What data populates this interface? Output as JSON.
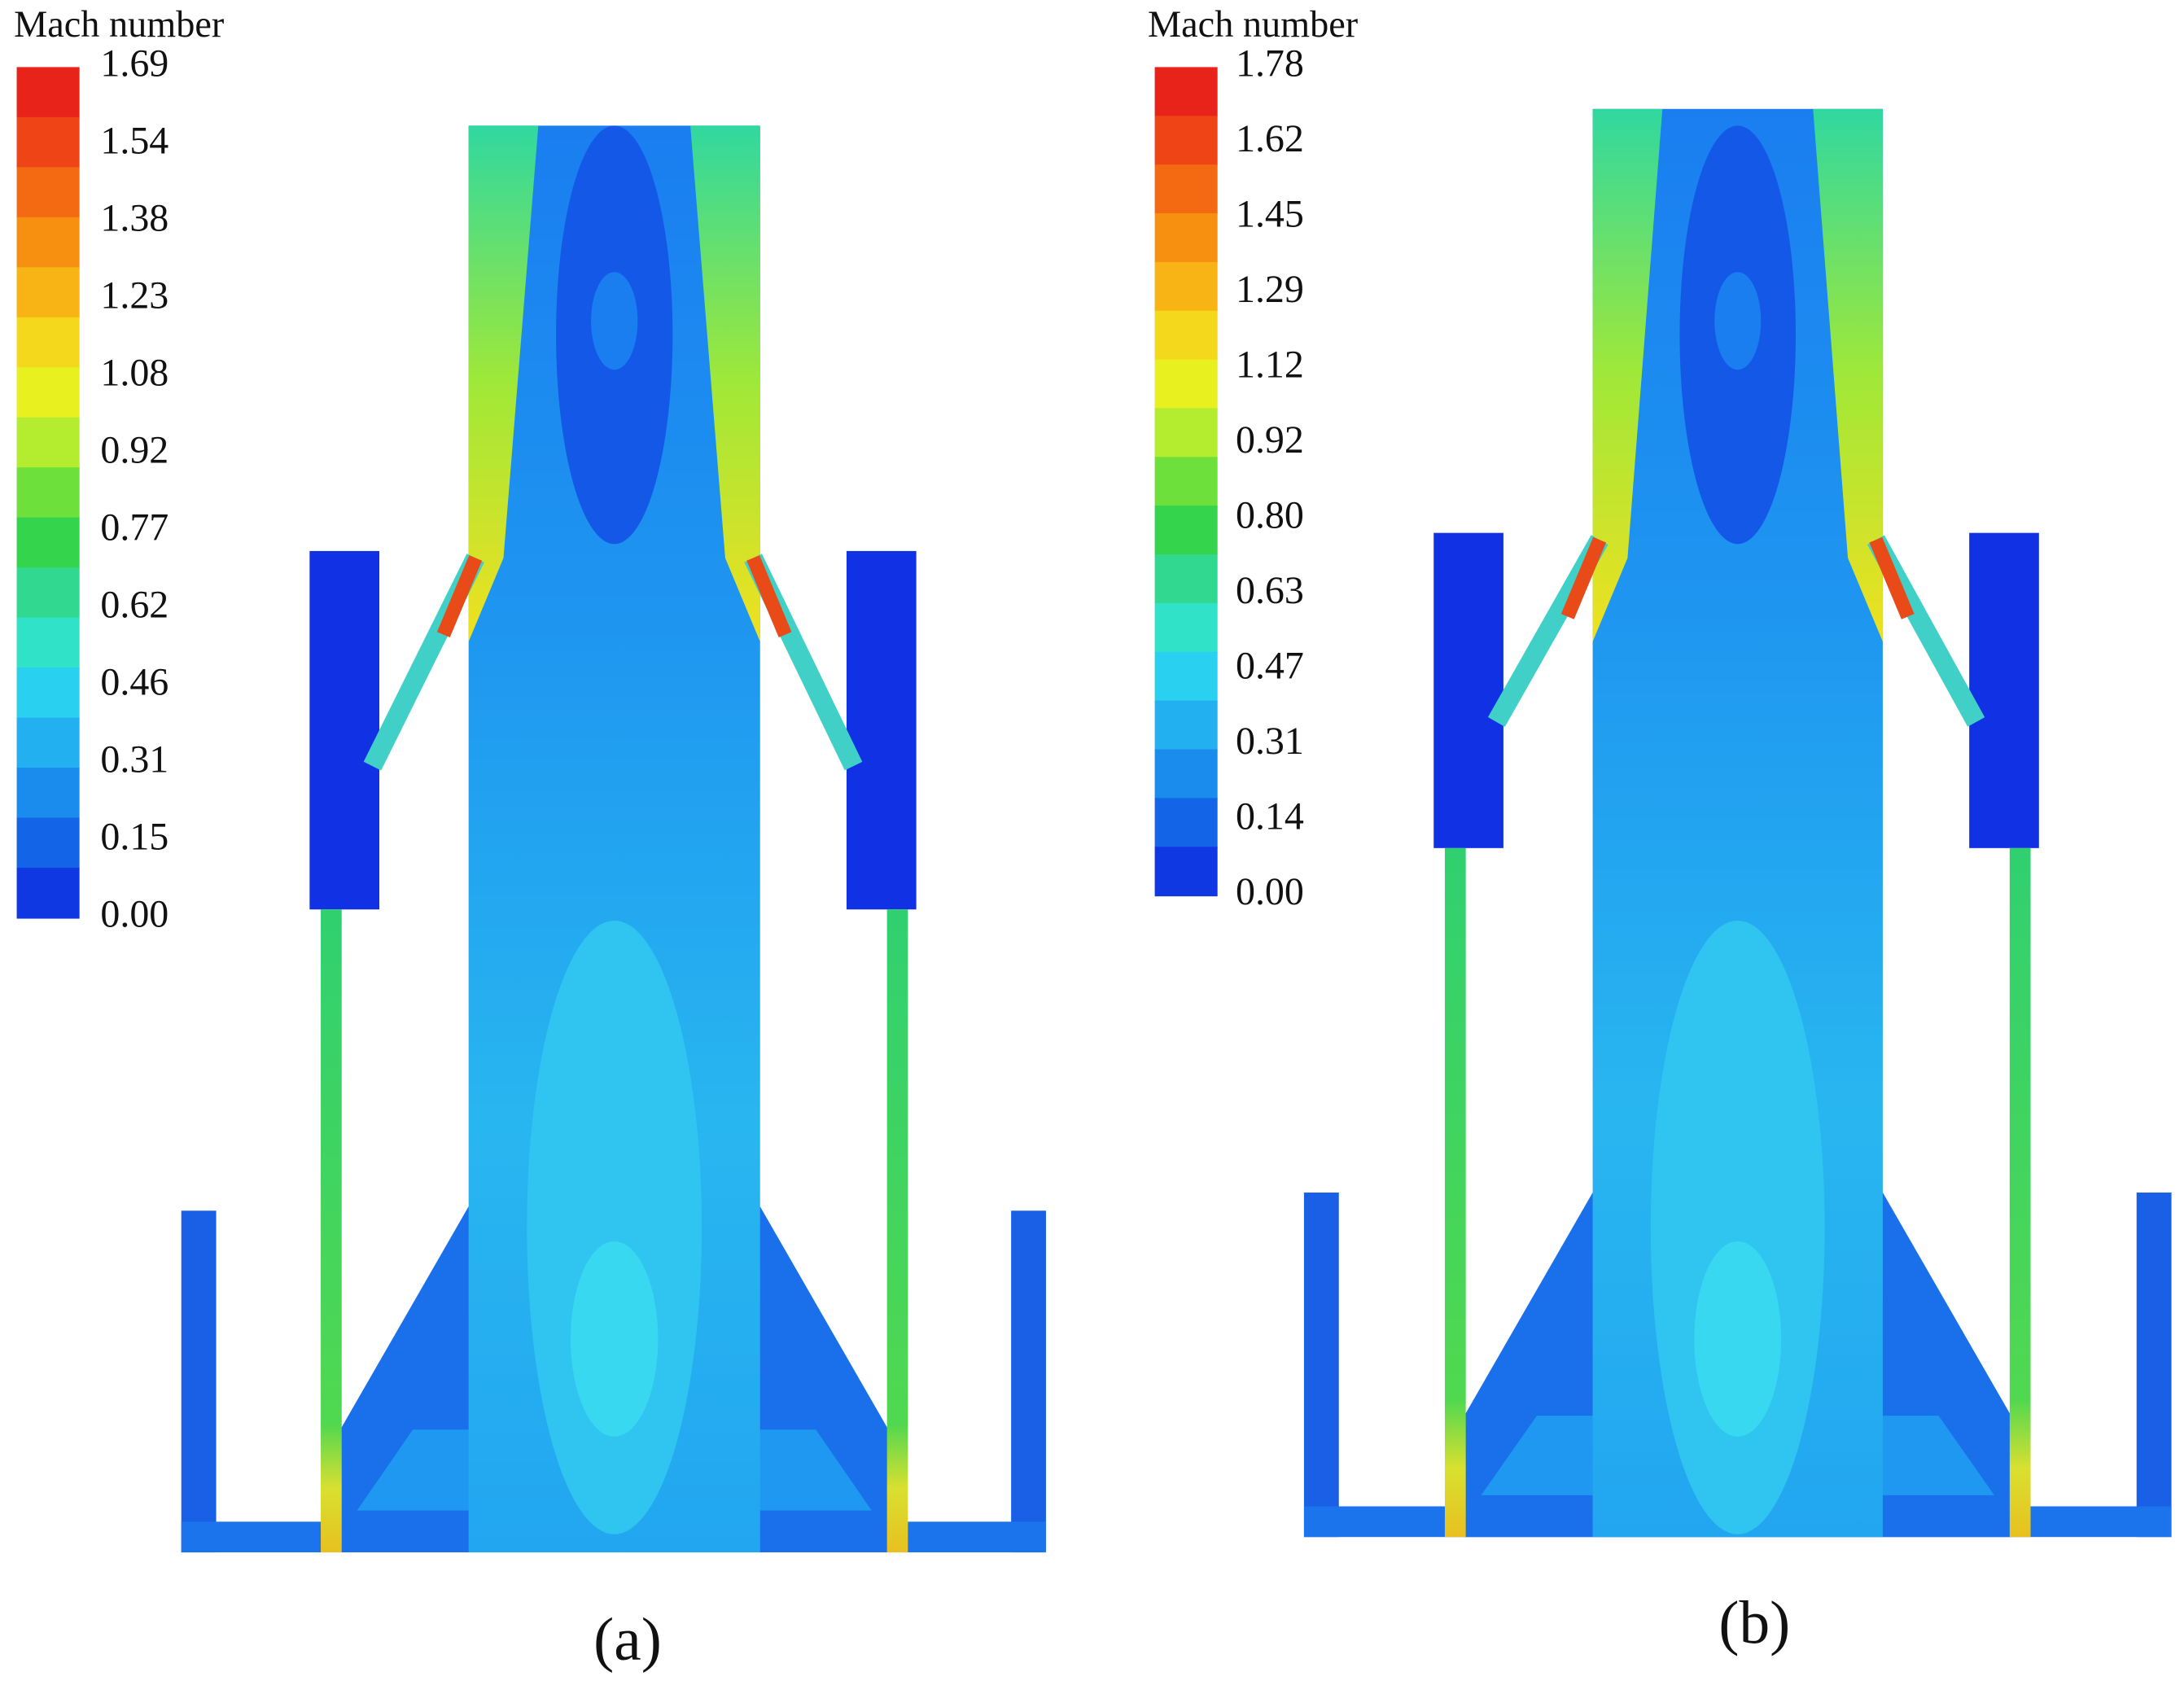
{
  "panels": [
    {
      "colorbar_title": "Mach number",
      "colorbar_ticks": [
        "1.69",
        "1.54",
        "1.38",
        "1.23",
        "1.08",
        "0.92",
        "0.77",
        "0.62",
        "0.46",
        "0.31",
        "0.15",
        "0.00"
      ],
      "label": "(a)"
    },
    {
      "colorbar_title": "Mach number",
      "colorbar_ticks": [
        "1.78",
        "1.62",
        "1.45",
        "1.29",
        "1.12",
        "0.92",
        "0.80",
        "0.63",
        "0.47",
        "0.31",
        "0.14",
        "0.00"
      ],
      "label": "(b)"
    }
  ]
}
